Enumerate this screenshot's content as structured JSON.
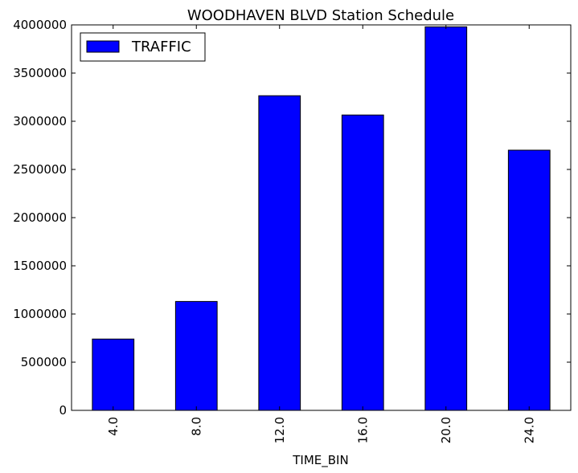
{
  "chart_data": {
    "type": "bar",
    "title": "WOODHAVEN BLVD Station Schedule",
    "xlabel": "TIME_BIN",
    "ylabel": "",
    "categories": [
      "4.0",
      "8.0",
      "12.0",
      "16.0",
      "20.0",
      "24.0"
    ],
    "series": [
      {
        "name": "TRAFFIC",
        "color": "#0000ff",
        "values": [
          740000,
          1130000,
          3265000,
          3065000,
          3980000,
          2700000
        ]
      }
    ],
    "ylim": [
      0,
      4000000
    ],
    "yticks": [
      "0",
      "500000",
      "1000000",
      "1500000",
      "2000000",
      "2500000",
      "3000000",
      "3500000",
      "4000000"
    ],
    "grid": false,
    "legend": {
      "placement": "top-left",
      "entries": [
        "TRAFFIC"
      ]
    }
  }
}
